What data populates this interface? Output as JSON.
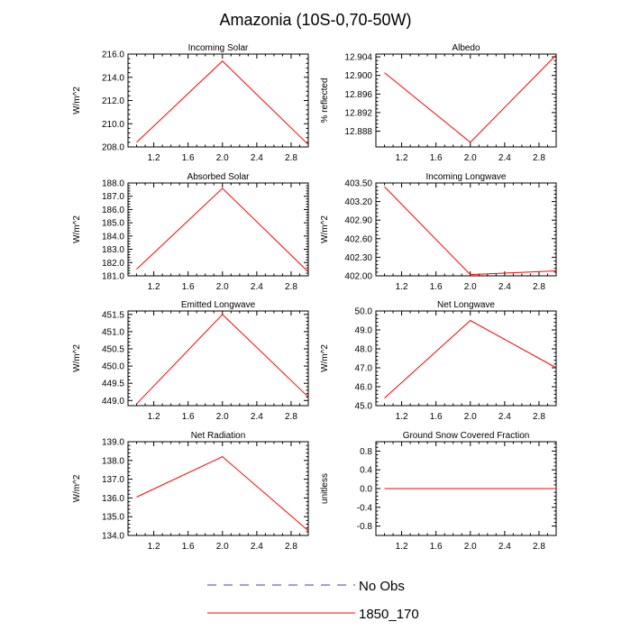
{
  "title": "Amazonia (10S-0,70-50W)",
  "legend": {
    "entries": [
      {
        "label": "No Obs",
        "color": "#3b3bcc",
        "dashed": true
      },
      {
        "label": "1850_170",
        "color": "#ff0000",
        "dashed": false
      }
    ]
  },
  "chart_data": [
    {
      "type": "line",
      "title": "Incoming Solar",
      "ylabel": "W/m^2",
      "x": [
        1.0,
        2.0,
        3.0
      ],
      "values": [
        208.4,
        215.4,
        208.2
      ],
      "xlim": [
        0.9,
        3.0
      ],
      "ylim": [
        208.0,
        216.0
      ],
      "xticks": [
        1.2,
        1.6,
        2.0,
        2.4,
        2.8
      ],
      "xtick_labels": [
        "1.2",
        "1.6",
        "2.0",
        "2.4",
        "2.8"
      ],
      "yticks": [
        208,
        210,
        212,
        214,
        216
      ],
      "ytick_labels": [
        "208.0",
        "210.0",
        "212.0",
        "214.0",
        "216.0"
      ]
    },
    {
      "type": "line",
      "title": "Albedo",
      "ylabel": "% reflected",
      "x": [
        1.0,
        2.0,
        3.0
      ],
      "values": [
        12.9006,
        12.8856,
        12.9044
      ],
      "xlim": [
        0.9,
        3.0
      ],
      "ylim": [
        12.8846,
        12.9046
      ],
      "xticks": [
        1.2,
        1.6,
        2.0,
        2.4,
        2.8
      ],
      "xtick_labels": [
        "1.2",
        "1.6",
        "2.0",
        "2.4",
        "2.8"
      ],
      "yticks": [
        12.888,
        12.892,
        12.896,
        12.9,
        12.904
      ],
      "ytick_labels": [
        "12.888",
        "12.892",
        "12.896",
        "12.900",
        "12.904"
      ]
    },
    {
      "type": "line",
      "title": "Absorbed Solar",
      "ylabel": "W/m^2",
      "x": [
        1.0,
        2.0,
        3.0
      ],
      "values": [
        181.5,
        187.6,
        181.3
      ],
      "xlim": [
        0.9,
        3.0
      ],
      "ylim": [
        181.0,
        188.0
      ],
      "xticks": [
        1.2,
        1.6,
        2.0,
        2.4,
        2.8
      ],
      "xtick_labels": [
        "1.2",
        "1.6",
        "2.0",
        "2.4",
        "2.8"
      ],
      "yticks": [
        181,
        182,
        183,
        184,
        185,
        186,
        187,
        188
      ],
      "ytick_labels": [
        "181.0",
        "182.0",
        "183.0",
        "184.0",
        "185.0",
        "186.0",
        "187.0",
        "188.0"
      ]
    },
    {
      "type": "line",
      "title": "Incoming Longwave",
      "ylabel": "W/m^2",
      "x": [
        1.0,
        2.0,
        3.0
      ],
      "values": [
        403.44,
        402.02,
        402.08
      ],
      "xlim": [
        0.9,
        3.0
      ],
      "ylim": [
        402.0,
        403.5
      ],
      "xticks": [
        1.2,
        1.6,
        2.0,
        2.4,
        2.8
      ],
      "xtick_labels": [
        "1.2",
        "1.6",
        "2.0",
        "2.4",
        "2.8"
      ],
      "yticks": [
        402.0,
        402.3,
        402.6,
        402.9,
        403.2,
        403.5
      ],
      "ytick_labels": [
        "402.00",
        "402.30",
        "402.60",
        "402.90",
        "403.20",
        "403.50"
      ]
    },
    {
      "type": "line",
      "title": "Emitted Longwave",
      "ylabel": "W/m^2",
      "x": [
        1.0,
        2.0,
        3.0
      ],
      "values": [
        448.9,
        451.5,
        449.1
      ],
      "xlim": [
        0.9,
        3.0
      ],
      "ylim": [
        448.85,
        451.6
      ],
      "xticks": [
        1.2,
        1.6,
        2.0,
        2.4,
        2.8
      ],
      "xtick_labels": [
        "1.2",
        "1.6",
        "2.0",
        "2.4",
        "2.8"
      ],
      "yticks": [
        449.0,
        449.5,
        450.0,
        450.5,
        451.0,
        451.5
      ],
      "ytick_labels": [
        "449.0",
        "449.5",
        "450.0",
        "450.5",
        "451.0",
        "451.5"
      ]
    },
    {
      "type": "line",
      "title": "Net Longwave",
      "ylabel": "W/m^2",
      "x": [
        1.0,
        2.0,
        3.0
      ],
      "values": [
        45.4,
        49.5,
        47.0
      ],
      "xlim": [
        0.9,
        3.0
      ],
      "ylim": [
        45.0,
        50.0
      ],
      "xticks": [
        1.2,
        1.6,
        2.0,
        2.4,
        2.8
      ],
      "xtick_labels": [
        "1.2",
        "1.6",
        "2.0",
        "2.4",
        "2.8"
      ],
      "yticks": [
        45,
        46,
        47,
        48,
        49,
        50
      ],
      "ytick_labels": [
        "45.0",
        "46.0",
        "47.0",
        "48.0",
        "49.0",
        "50.0"
      ]
    },
    {
      "type": "line",
      "title": "Net Radiation",
      "ylabel": "W/m^2",
      "x": [
        1.0,
        2.0,
        3.0
      ],
      "values": [
        136.05,
        138.2,
        134.25
      ],
      "xlim": [
        0.9,
        3.0
      ],
      "ylim": [
        134.0,
        139.0
      ],
      "xticks": [
        1.2,
        1.6,
        2.0,
        2.4,
        2.8
      ],
      "xtick_labels": [
        "1.2",
        "1.6",
        "2.0",
        "2.4",
        "2.8"
      ],
      "yticks": [
        134,
        135,
        136,
        137,
        138,
        139
      ],
      "ytick_labels": [
        "134.0",
        "135.0",
        "136.0",
        "137.0",
        "138.0",
        "139.0"
      ]
    },
    {
      "type": "line",
      "title": "Ground Snow Covered Fraction",
      "ylabel": "unitless",
      "x": [
        1.0,
        2.0,
        3.0
      ],
      "values": [
        0.0,
        0.0,
        0.0
      ],
      "xlim": [
        0.9,
        3.0
      ],
      "ylim": [
        -1.0,
        1.0
      ],
      "xticks": [
        1.2,
        1.6,
        2.0,
        2.4,
        2.8
      ],
      "xtick_labels": [
        "1.2",
        "1.6",
        "2.0",
        "2.4",
        "2.8"
      ],
      "yticks": [
        -0.8,
        -0.4,
        0.0,
        0.4,
        0.8
      ],
      "ytick_labels": [
        "-0.8",
        "-0.4",
        "0.0",
        "0.4",
        "0.8"
      ]
    }
  ]
}
